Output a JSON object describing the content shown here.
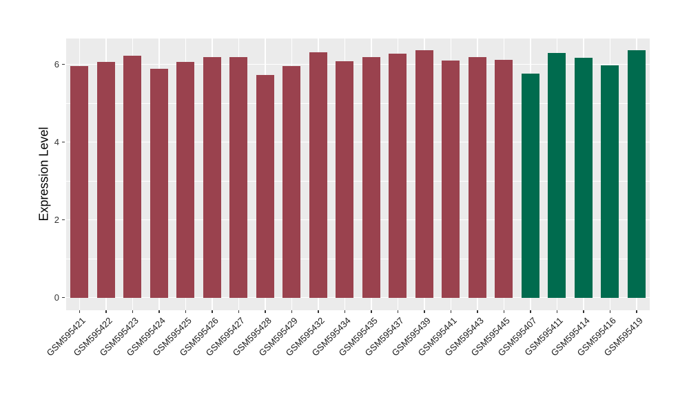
{
  "chart_data": {
    "type": "bar",
    "title": "",
    "xlabel": "",
    "ylabel": "Expression Level",
    "categories": [
      "GSM595421",
      "GSM595422",
      "GSM595423",
      "GSM595424",
      "GSM595425",
      "GSM595426",
      "GSM595427",
      "GSM595428",
      "GSM595429",
      "GSM595432",
      "GSM595434",
      "GSM595435",
      "GSM595437",
      "GSM595439",
      "GSM595441",
      "GSM595443",
      "GSM595445",
      "GSM595407",
      "GSM595411",
      "GSM595414",
      "GSM595416",
      "GSM595419"
    ],
    "values": [
      5.95,
      6.07,
      6.22,
      5.89,
      6.07,
      6.18,
      6.18,
      5.73,
      5.96,
      6.31,
      6.08,
      6.18,
      6.28,
      6.36,
      6.09,
      6.19,
      6.12,
      5.77,
      6.29,
      6.16,
      5.98,
      6.36
    ],
    "bar_groups": [
      "maroon",
      "maroon",
      "maroon",
      "maroon",
      "maroon",
      "maroon",
      "maroon",
      "maroon",
      "maroon",
      "maroon",
      "maroon",
      "maroon",
      "maroon",
      "maroon",
      "maroon",
      "maroon",
      "maroon",
      "green",
      "green",
      "green",
      "green",
      "green"
    ],
    "group_colors": {
      "maroon": "#9A424E",
      "green": "#006B4E"
    },
    "y_axis": {
      "major_ticks": [
        0,
        2,
        4,
        6
      ],
      "minor_gridlines": [
        1,
        3,
        5
      ],
      "ylim": [
        0,
        6.7
      ]
    },
    "legend": "none",
    "panel_background": "#EBEBEB",
    "gridline_color": "#FFFFFF",
    "grid": "on"
  }
}
